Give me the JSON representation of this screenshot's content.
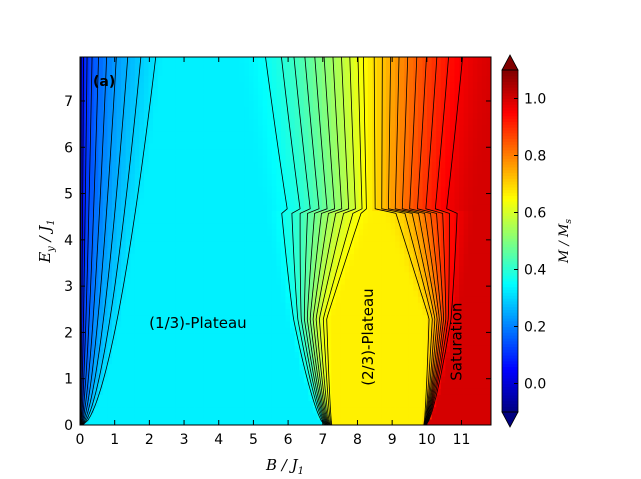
{
  "chart_data": {
    "type": "heatmap",
    "title": "",
    "panel_label": "(a)",
    "xlabel": "B / J",
    "xlabel_sub": "1",
    "ylabel": "E",
    "ylabel_sub1": "y",
    "ylabel_mid": " / J",
    "ylabel_sub2": "1",
    "xlim": [
      0,
      11.85
    ],
    "ylim": [
      0,
      7.95
    ],
    "xticks": [
      0,
      1,
      2,
      3,
      4,
      5,
      6,
      7,
      8,
      9,
      10,
      11
    ],
    "yticks": [
      0,
      1,
      2,
      3,
      4,
      5,
      6,
      7
    ],
    "colorbar": {
      "label": "M / M",
      "label_sub": "s",
      "range": [
        -0.1,
        1.1
      ],
      "ticks": [
        0.0,
        0.2,
        0.4,
        0.6,
        0.8,
        1.0
      ],
      "tick_labels": [
        "0.0",
        "0.2",
        "0.4",
        "0.6",
        "0.8",
        "1.0"
      ],
      "extend": "both",
      "colormap": "jet"
    },
    "regions": [
      {
        "label": "(1/3)-Plateau",
        "x": 3.4,
        "y": 2.1,
        "rotation": 0
      },
      {
        "label": "(2/3)-Plateau",
        "x": 8.45,
        "y": 1.9,
        "rotation": -90
      },
      {
        "label": "Saturation",
        "x": 11.0,
        "y": 1.8,
        "rotation": -90
      }
    ],
    "magnetization_profile": {
      "description": "M/Ms vs B at each E_y: rises from 0, plateaus at 1/3, rises to 2/3 plateau, then saturates at 1",
      "plateau_1_3_end_B_at_E0": 7.0,
      "plateau_2_3_start_B_at_E0": 7.3,
      "plateau_2_3_end_B_at_E0": 9.9,
      "saturation_B_at_E0": 10.0
    },
    "contour_levels": [
      0.02,
      0.05,
      0.08,
      0.11,
      0.14,
      0.17,
      0.2,
      0.23,
      0.26,
      0.29,
      0.32,
      0.36,
      0.39,
      0.42,
      0.45,
      0.48,
      0.51,
      0.54,
      0.57,
      0.6,
      0.63,
      0.65,
      0.69,
      0.72,
      0.75,
      0.78,
      0.81,
      0.84,
      0.87,
      0.9,
      0.93,
      0.96
    ]
  }
}
